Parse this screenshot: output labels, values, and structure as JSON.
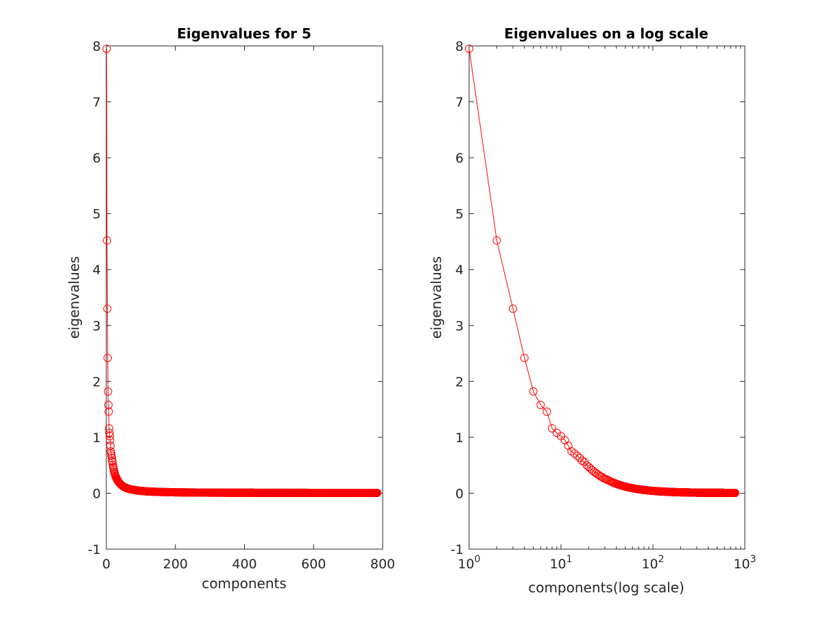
{
  "chart_data": [
    {
      "type": "line",
      "title": "Eigenvalues for 5",
      "xlabel": "components",
      "ylabel": "eigenvalues",
      "xscale": "linear",
      "xlim": [
        0,
        800
      ],
      "ylim": [
        -1,
        8
      ],
      "xticks": [
        0,
        200,
        400,
        600,
        800
      ],
      "xtick_labels": [
        "0",
        "200",
        "400",
        "600",
        "800"
      ],
      "yticks": [
        -1,
        0,
        1,
        2,
        3,
        4,
        5,
        6,
        7,
        8
      ],
      "ytick_labels": [
        "-1",
        "0",
        "1",
        "2",
        "3",
        "4",
        "5",
        "6",
        "7",
        "8"
      ],
      "grid": false,
      "legend": "none",
      "marker": "open-circle",
      "color": "#ff0000",
      "n_components": 784,
      "series_values_head": [
        7.95,
        4.52,
        3.3,
        2.42,
        1.82,
        1.58,
        1.46,
        1.16,
        1.08,
        1.02,
        0.95,
        0.85,
        0.75,
        0.71,
        0.67,
        0.63,
        0.58,
        0.56,
        0.5,
        0.47,
        0.44,
        0.41,
        0.38,
        0.36,
        0.34,
        0.32,
        0.3,
        0.29,
        0.27,
        0.26
      ]
    },
    {
      "type": "line",
      "title": "Eigenvalues on a log scale",
      "xlabel": "components(log scale)",
      "ylabel": "eigenvalues",
      "xscale": "log",
      "xlim": [
        1,
        1000
      ],
      "ylim": [
        -1,
        8
      ],
      "xticks": [
        1,
        10,
        100,
        1000
      ],
      "xtick_bases": [
        "10",
        "10",
        "10",
        "10"
      ],
      "xtick_exponents": [
        "0",
        "1",
        "2",
        "3"
      ],
      "yticks": [
        -1,
        0,
        1,
        2,
        3,
        4,
        5,
        6,
        7,
        8
      ],
      "ytick_labels": [
        "-1",
        "0",
        "1",
        "2",
        "3",
        "4",
        "5",
        "6",
        "7",
        "8"
      ],
      "grid": false,
      "legend": "none",
      "marker": "open-circle",
      "color": "#ff0000",
      "n_components": 784,
      "series_values_head": [
        7.95,
        4.52,
        3.3,
        2.42,
        1.82,
        1.58,
        1.46,
        1.16,
        1.08,
        1.02,
        0.95,
        0.85,
        0.75,
        0.71,
        0.67,
        0.63,
        0.58,
        0.56,
        0.5,
        0.47,
        0.44,
        0.41,
        0.38,
        0.36,
        0.34,
        0.32,
        0.3,
        0.29,
        0.27,
        0.26
      ]
    }
  ]
}
